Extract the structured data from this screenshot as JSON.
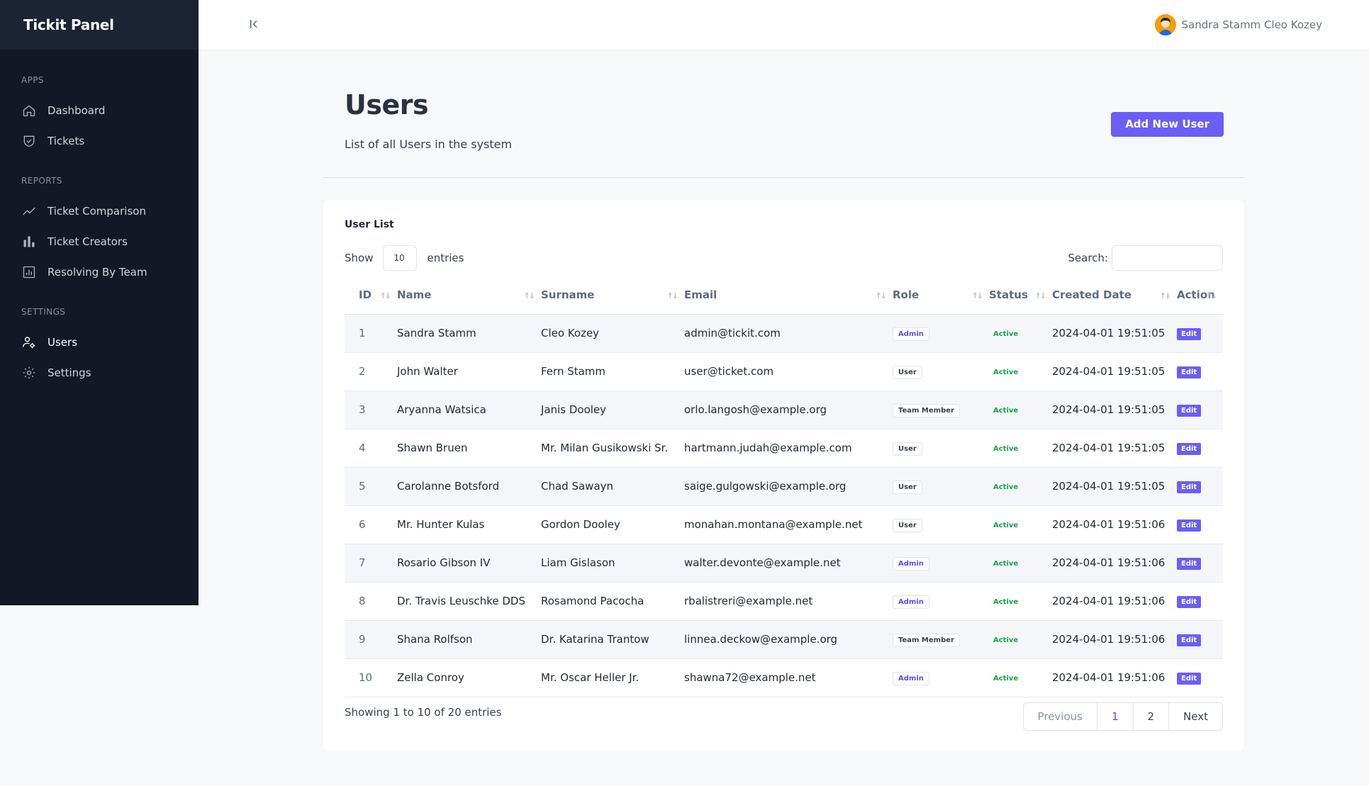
{
  "app": {
    "brand": "Tickit Panel"
  },
  "sidebar": {
    "sections": [
      {
        "heading": "APPS",
        "items": [
          {
            "label": "Dashboard",
            "icon": "home-icon"
          },
          {
            "label": "Tickets",
            "icon": "shield-check-icon"
          }
        ]
      },
      {
        "heading": "REPORTS",
        "items": [
          {
            "label": "Ticket Comparison",
            "icon": "trend-line-icon"
          },
          {
            "label": "Ticket Creators",
            "icon": "bar-chart-icon"
          },
          {
            "label": "Resolving By Team",
            "icon": "report-icon"
          }
        ]
      },
      {
        "heading": "SETTINGS",
        "items": [
          {
            "label": "Users",
            "icon": "users-gear-icon",
            "active": true
          },
          {
            "label": "Settings",
            "icon": "gear-icon"
          }
        ]
      }
    ]
  },
  "topbar": {
    "user_name": "Sandra Stamm Cleo Kozey"
  },
  "page": {
    "title": "Users",
    "subtitle": "List of all Users in the system",
    "add_button": "Add New User"
  },
  "card": {
    "title": "User List",
    "show_label": "Show",
    "entries_label": "entries",
    "length_value": "10",
    "search_label": "Search:",
    "search_value": "",
    "columns": [
      "ID",
      "Name",
      "Surname",
      "Email",
      "Role",
      "Status",
      "Created Date",
      "Action"
    ],
    "rows": [
      {
        "id": "1",
        "name": "Sandra Stamm",
        "surname": "Cleo Kozey",
        "email": "admin@tickit.com",
        "role": "Admin",
        "status": "Active",
        "created": "2024-04-01 19:51:05",
        "action": "Edit"
      },
      {
        "id": "2",
        "name": "John Walter",
        "surname": "Fern Stamm",
        "email": "user@ticket.com",
        "role": "User",
        "status": "Active",
        "created": "2024-04-01 19:51:05",
        "action": "Edit"
      },
      {
        "id": "3",
        "name": "Aryanna Watsica",
        "surname": "Janis Dooley",
        "email": "orlo.langosh@example.org",
        "role": "Team Member",
        "status": "Active",
        "created": "2024-04-01 19:51:05",
        "action": "Edit"
      },
      {
        "id": "4",
        "name": "Shawn Bruen",
        "surname": "Mr. Milan Gusikowski Sr.",
        "email": "hartmann.judah@example.com",
        "role": "User",
        "status": "Active",
        "created": "2024-04-01 19:51:05",
        "action": "Edit"
      },
      {
        "id": "5",
        "name": "Carolanne Botsford",
        "surname": "Chad Sawayn",
        "email": "saige.gulgowski@example.org",
        "role": "User",
        "status": "Active",
        "created": "2024-04-01 19:51:05",
        "action": "Edit"
      },
      {
        "id": "6",
        "name": "Mr. Hunter Kulas",
        "surname": "Gordon Dooley",
        "email": "monahan.montana@example.net",
        "role": "User",
        "status": "Active",
        "created": "2024-04-01 19:51:06",
        "action": "Edit"
      },
      {
        "id": "7",
        "name": "Rosario Gibson IV",
        "surname": "Liam Gislason",
        "email": "walter.devonte@example.net",
        "role": "Admin",
        "status": "Active",
        "created": "2024-04-01 19:51:06",
        "action": "Edit"
      },
      {
        "id": "8",
        "name": "Dr. Travis Leuschke DDS",
        "surname": "Rosamond Pacocha",
        "email": "rbalistreri@example.net",
        "role": "Admin",
        "status": "Active",
        "created": "2024-04-01 19:51:06",
        "action": "Edit"
      },
      {
        "id": "9",
        "name": "Shana Rolfson",
        "surname": "Dr. Katarina Trantow",
        "email": "linnea.deckow@example.org",
        "role": "Team Member",
        "status": "Active",
        "created": "2024-04-01 19:51:06",
        "action": "Edit"
      },
      {
        "id": "10",
        "name": "Zella Conroy",
        "surname": "Mr. Oscar Heller Jr.",
        "email": "shawna72@example.net",
        "role": "Admin",
        "status": "Active",
        "created": "2024-04-01 19:51:06",
        "action": "Edit"
      }
    ],
    "info": "Showing 1 to 10 of 20 entries",
    "pagination": {
      "previous": "Previous",
      "pages": [
        "1",
        "2"
      ],
      "current": "1",
      "next": "Next"
    }
  },
  "colors": {
    "accent": "#6b5ef5",
    "sidebar_bg": "#121825",
    "active_status": "#16a34a"
  }
}
